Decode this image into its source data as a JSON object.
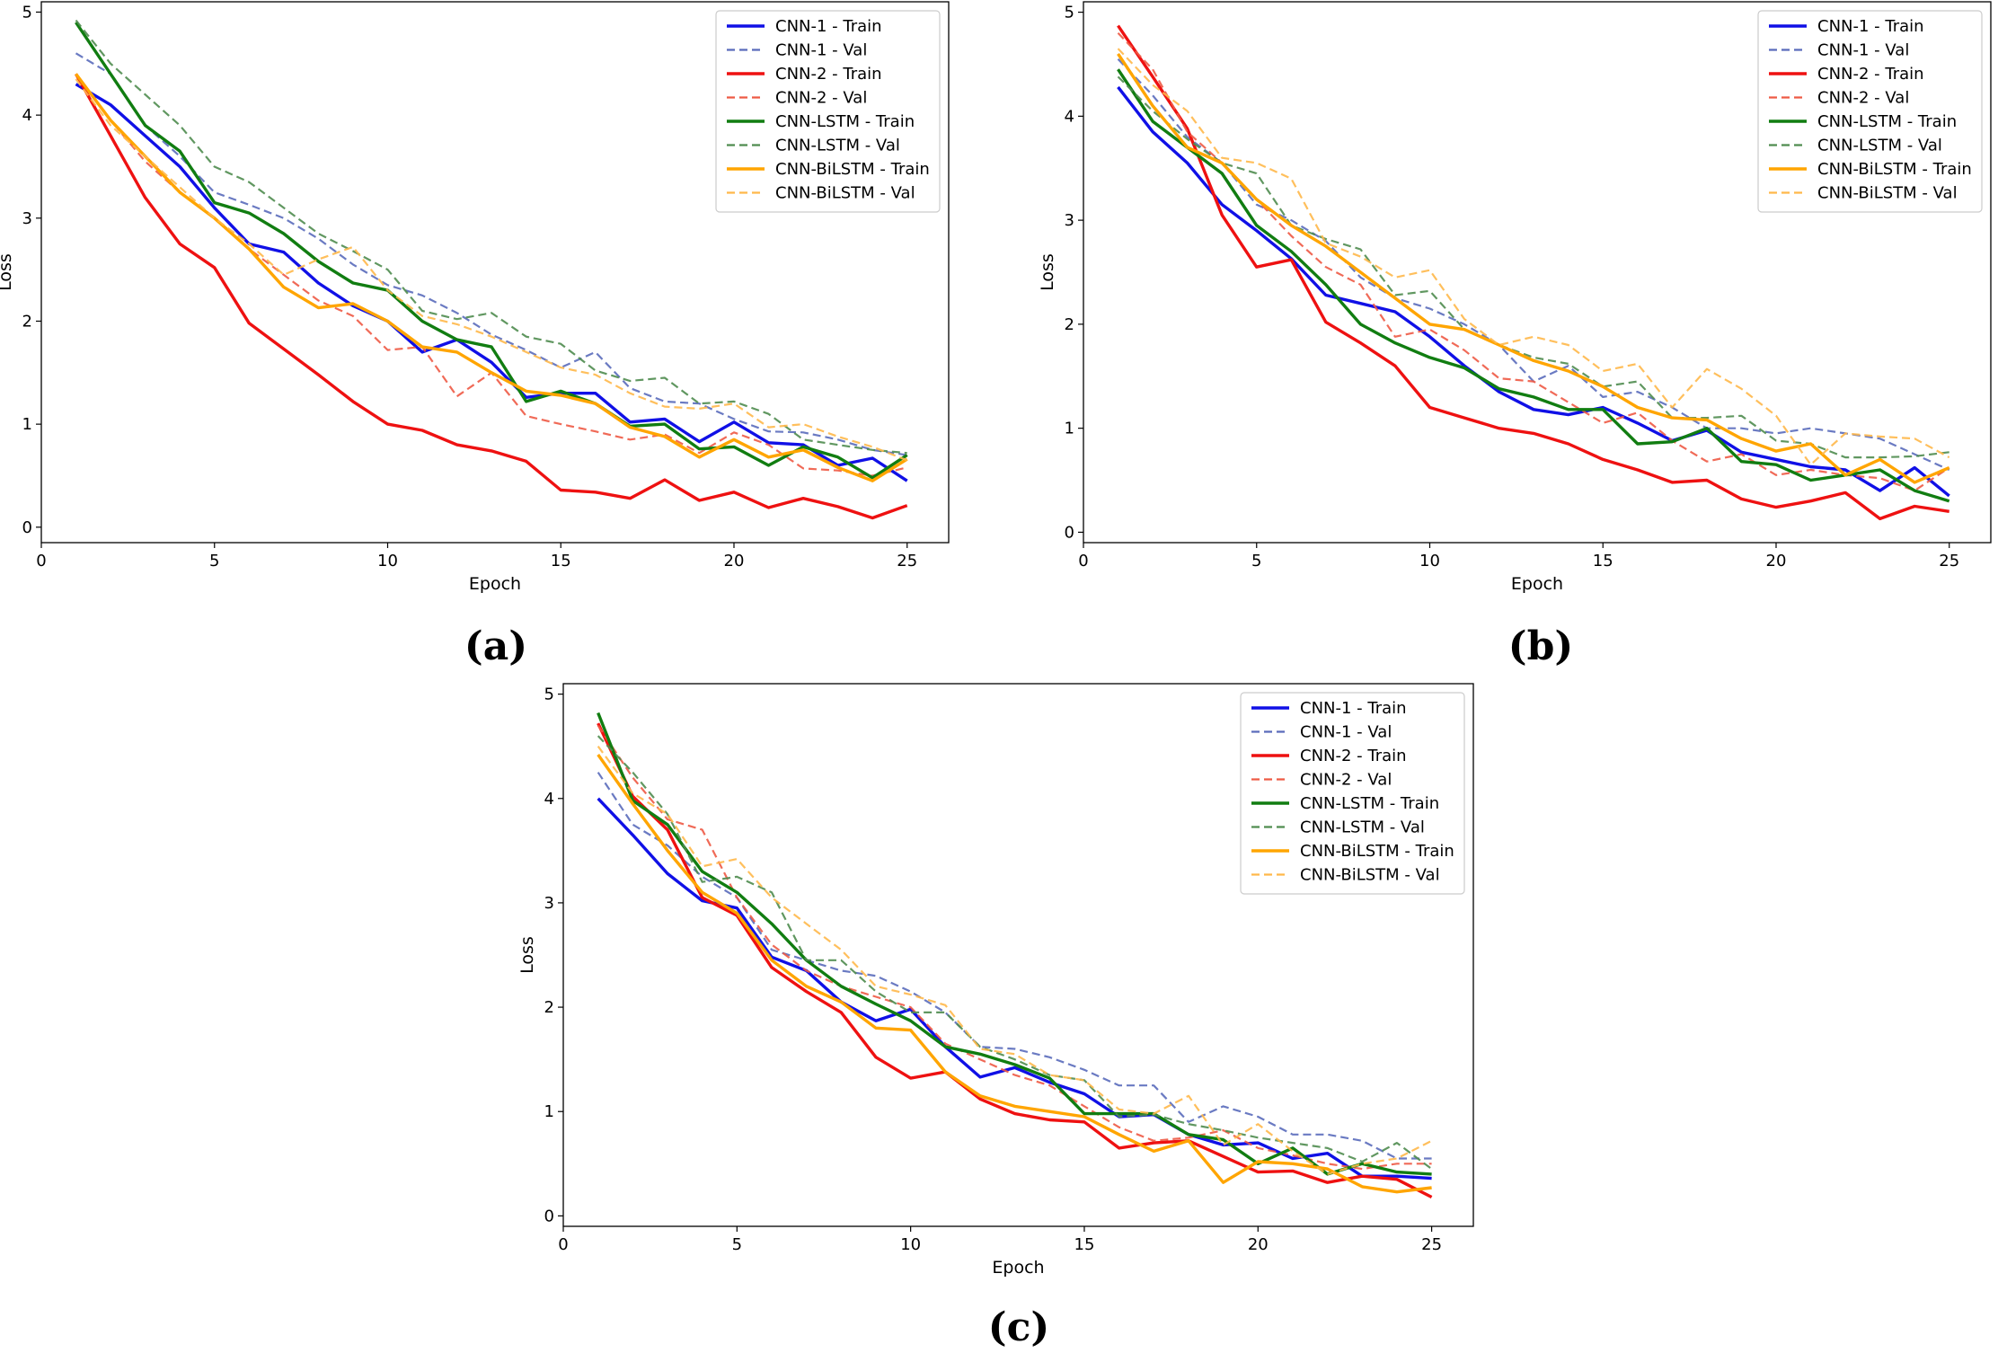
{
  "panel_labels": [
    "(a)",
    "(b)",
    "(c)"
  ],
  "colors": {
    "CNN-1 - Train": "#1010e6",
    "CNN-1 - Val": "#5a6bbb",
    "CNN-2 - Train": "#ee1111",
    "CNN-2 - Val": "#ee5a45",
    "CNN-LSTM - Train": "#117d11",
    "CNN-LSTM - Val": "#4f8c4f",
    "CNN-BiLSTM - Train": "#ffa500",
    "CNN-BiLSTM - Val": "#ffb84a"
  },
  "chart_data": [
    {
      "type": "line",
      "title": "",
      "panel": "(a)",
      "xlabel": "Epoch",
      "ylabel": "Loss",
      "xlim": [
        0,
        26.2
      ],
      "ylim": [
        -0.15,
        5.1
      ],
      "xticks": [
        0,
        5,
        10,
        15,
        20,
        25
      ],
      "yticks": [
        0,
        1,
        2,
        3,
        4,
        5
      ],
      "legend": "top-right",
      "x": [
        1,
        2,
        3,
        4,
        5,
        6,
        7,
        8,
        9,
        10,
        11,
        12,
        13,
        14,
        15,
        16,
        17,
        18,
        19,
        20,
        21,
        22,
        23,
        24,
        25
      ],
      "series": [
        {
          "name": "CNN-1 - Train",
          "dashed": false,
          "values": [
            4.3,
            4.1,
            3.8,
            3.5,
            3.1,
            2.75,
            2.67,
            2.37,
            2.15,
            2.0,
            1.7,
            1.82,
            1.6,
            1.26,
            1.3,
            1.3,
            1.02,
            1.05,
            0.83,
            1.02,
            0.82,
            0.8,
            0.6,
            0.67,
            0.45
          ]
        },
        {
          "name": "CNN-1 - Val",
          "dashed": true,
          "values": [
            4.6,
            4.4,
            3.9,
            3.6,
            3.25,
            3.13,
            3.0,
            2.8,
            2.55,
            2.35,
            2.25,
            2.08,
            1.87,
            1.72,
            1.55,
            1.7,
            1.35,
            1.22,
            1.2,
            1.05,
            0.93,
            0.92,
            0.85,
            0.75,
            0.7
          ]
        },
        {
          "name": "CNN-2 - Train",
          "dashed": false,
          "values": [
            4.4,
            3.8,
            3.2,
            2.75,
            2.52,
            1.98,
            1.73,
            1.48,
            1.22,
            1.0,
            0.94,
            0.8,
            0.74,
            0.64,
            0.36,
            0.34,
            0.28,
            0.46,
            0.26,
            0.34,
            0.19,
            0.28,
            0.2,
            0.09,
            0.21
          ]
        },
        {
          "name": "CNN-2 - Val",
          "dashed": true,
          "values": [
            4.4,
            3.95,
            3.55,
            3.25,
            3.0,
            2.7,
            2.45,
            2.2,
            2.05,
            1.72,
            1.75,
            1.27,
            1.5,
            1.08,
            1.0,
            0.93,
            0.85,
            0.9,
            0.72,
            0.92,
            0.8,
            0.57,
            0.55,
            0.5,
            0.58
          ]
        },
        {
          "name": "CNN-LSTM - Train",
          "dashed": false,
          "values": [
            4.9,
            4.4,
            3.9,
            3.65,
            3.15,
            3.05,
            2.85,
            2.58,
            2.37,
            2.3,
            2.0,
            1.82,
            1.75,
            1.22,
            1.32,
            1.2,
            0.98,
            1.0,
            0.76,
            0.78,
            0.6,
            0.78,
            0.68,
            0.48,
            0.7
          ]
        },
        {
          "name": "CNN-LSTM - Val",
          "dashed": true,
          "values": [
            4.92,
            4.5,
            4.2,
            3.9,
            3.5,
            3.35,
            3.1,
            2.85,
            2.68,
            2.5,
            2.1,
            2.02,
            2.08,
            1.85,
            1.78,
            1.52,
            1.42,
            1.45,
            1.2,
            1.22,
            1.1,
            0.85,
            0.8,
            0.75,
            0.72
          ]
        },
        {
          "name": "CNN-BiLSTM - Train",
          "dashed": false,
          "values": [
            4.4,
            3.95,
            3.6,
            3.25,
            3.0,
            2.7,
            2.33,
            2.13,
            2.17,
            2.0,
            1.75,
            1.7,
            1.5,
            1.32,
            1.28,
            1.2,
            0.97,
            0.88,
            0.68,
            0.85,
            0.68,
            0.75,
            0.58,
            0.45,
            0.66
          ]
        },
        {
          "name": "CNN-BiLSTM - Val",
          "dashed": true,
          "values": [
            4.35,
            3.9,
            3.6,
            3.3,
            3.0,
            2.75,
            2.45,
            2.6,
            2.72,
            2.3,
            2.05,
            1.97,
            1.85,
            1.7,
            1.55,
            1.48,
            1.3,
            1.17,
            1.15,
            1.2,
            0.97,
            1.0,
            0.88,
            0.78,
            0.65
          ]
        }
      ]
    },
    {
      "type": "line",
      "title": "",
      "panel": "(b)",
      "xlabel": "Epoch",
      "ylabel": "Loss",
      "xlim": [
        0,
        26.2
      ],
      "ylim": [
        -0.1,
        5.1
      ],
      "xticks": [
        0,
        5,
        10,
        15,
        20,
        25
      ],
      "yticks": [
        0,
        1,
        2,
        3,
        4,
        5
      ],
      "legend": "top-right",
      "x": [
        1,
        2,
        3,
        4,
        5,
        6,
        7,
        8,
        9,
        10,
        11,
        12,
        13,
        14,
        15,
        16,
        17,
        18,
        19,
        20,
        21,
        22,
        23,
        24,
        25
      ],
      "series": [
        {
          "name": "CNN-1 - Train",
          "dashed": false,
          "values": [
            4.28,
            3.85,
            3.55,
            3.15,
            2.9,
            2.63,
            2.28,
            2.2,
            2.12,
            1.88,
            1.6,
            1.35,
            1.18,
            1.13,
            1.2,
            1.05,
            0.88,
            0.98,
            0.77,
            0.7,
            0.63,
            0.6,
            0.4,
            0.62,
            0.35
          ]
        },
        {
          "name": "CNN-1 - Val",
          "dashed": true,
          "values": [
            4.55,
            4.2,
            3.8,
            3.55,
            3.15,
            3.0,
            2.8,
            2.45,
            2.25,
            2.15,
            2.0,
            1.8,
            1.45,
            1.6,
            1.3,
            1.35,
            1.2,
            1.0,
            1.0,
            0.95,
            1.0,
            0.95,
            0.9,
            0.75,
            0.6
          ]
        },
        {
          "name": "CNN-2 - Train",
          "dashed": false,
          "values": [
            4.87,
            4.38,
            3.88,
            3.05,
            2.55,
            2.62,
            2.02,
            1.82,
            1.6,
            1.2,
            1.1,
            1.0,
            0.95,
            0.85,
            0.7,
            0.6,
            0.48,
            0.5,
            0.32,
            0.24,
            0.3,
            0.38,
            0.13,
            0.25,
            0.2
          ]
        },
        {
          "name": "CNN-2 - Val",
          "dashed": true,
          "values": [
            4.8,
            4.45,
            3.85,
            3.55,
            3.2,
            2.85,
            2.55,
            2.38,
            1.88,
            1.95,
            1.75,
            1.48,
            1.45,
            1.25,
            1.05,
            1.15,
            0.88,
            0.68,
            0.75,
            0.55,
            0.6,
            0.55,
            0.52,
            0.4,
            0.62
          ]
        },
        {
          "name": "CNN-LSTM - Train",
          "dashed": false,
          "values": [
            4.45,
            3.95,
            3.7,
            3.45,
            2.95,
            2.7,
            2.38,
            2.0,
            1.82,
            1.68,
            1.58,
            1.38,
            1.3,
            1.18,
            1.18,
            0.85,
            0.87,
            1.0,
            0.68,
            0.65,
            0.5,
            0.55,
            0.6,
            0.4,
            0.3
          ]
        },
        {
          "name": "CNN-LSTM - Val",
          "dashed": true,
          "values": [
            4.38,
            4.05,
            3.78,
            3.55,
            3.45,
            2.95,
            2.82,
            2.72,
            2.28,
            2.32,
            1.95,
            1.8,
            1.68,
            1.62,
            1.4,
            1.45,
            1.1,
            1.1,
            1.12,
            0.88,
            0.85,
            0.72,
            0.72,
            0.73,
            0.77
          ]
        },
        {
          "name": "CNN-BiLSTM - Train",
          "dashed": false,
          "values": [
            4.6,
            4.1,
            3.7,
            3.55,
            3.2,
            2.95,
            2.75,
            2.5,
            2.25,
            2.0,
            1.95,
            1.8,
            1.65,
            1.55,
            1.4,
            1.2,
            1.1,
            1.08,
            0.9,
            0.78,
            0.85,
            0.55,
            0.7,
            0.48,
            0.62
          ]
        },
        {
          "name": "CNN-BiLSTM - Val",
          "dashed": true,
          "values": [
            4.65,
            4.3,
            4.05,
            3.6,
            3.55,
            3.4,
            2.78,
            2.65,
            2.45,
            2.52,
            2.05,
            1.8,
            1.88,
            1.8,
            1.55,
            1.62,
            1.2,
            1.57,
            1.38,
            1.12,
            0.65,
            0.95,
            0.92,
            0.9,
            0.72
          ]
        }
      ]
    },
    {
      "type": "line",
      "title": "",
      "panel": "(c)",
      "xlabel": "Epoch",
      "ylabel": "Loss",
      "xlim": [
        0,
        26.2
      ],
      "ylim": [
        -0.1,
        5.1
      ],
      "xticks": [
        0,
        5,
        10,
        15,
        20,
        25
      ],
      "yticks": [
        0,
        1,
        2,
        3,
        4,
        5
      ],
      "legend": "top-right",
      "x": [
        1,
        2,
        3,
        4,
        5,
        6,
        7,
        8,
        9,
        10,
        11,
        12,
        13,
        14,
        15,
        16,
        17,
        18,
        19,
        20,
        21,
        22,
        23,
        24,
        25
      ],
      "series": [
        {
          "name": "CNN-1 - Train",
          "dashed": false,
          "values": [
            4.0,
            3.65,
            3.28,
            3.02,
            2.95,
            2.48,
            2.35,
            2.05,
            1.87,
            1.98,
            1.62,
            1.33,
            1.42,
            1.28,
            1.17,
            0.95,
            0.97,
            0.78,
            0.68,
            0.7,
            0.55,
            0.6,
            0.38,
            0.38,
            0.36
          ]
        },
        {
          "name": "CNN-1 - Val",
          "dashed": true,
          "values": [
            4.25,
            3.75,
            3.55,
            3.25,
            3.05,
            2.55,
            2.45,
            2.35,
            2.3,
            2.15,
            1.95,
            1.62,
            1.6,
            1.52,
            1.4,
            1.25,
            1.25,
            0.9,
            1.05,
            0.95,
            0.78,
            0.78,
            0.72,
            0.55,
            0.55
          ]
        },
        {
          "name": "CNN-2 - Train",
          "dashed": false,
          "values": [
            4.72,
            4.02,
            3.7,
            3.05,
            2.88,
            2.38,
            2.15,
            1.95,
            1.52,
            1.32,
            1.38,
            1.12,
            0.98,
            0.92,
            0.9,
            0.65,
            0.7,
            0.72,
            0.57,
            0.42,
            0.43,
            0.32,
            0.38,
            0.35,
            0.18
          ]
        },
        {
          "name": "CNN-2 - Val",
          "dashed": true,
          "values": [
            4.7,
            4.2,
            3.8,
            3.7,
            3.05,
            2.6,
            2.35,
            2.2,
            2.1,
            2.0,
            1.65,
            1.5,
            1.35,
            1.25,
            1.05,
            0.85,
            0.72,
            0.75,
            0.82,
            0.65,
            0.58,
            0.5,
            0.45,
            0.5,
            0.5
          ]
        },
        {
          "name": "CNN-LSTM - Train",
          "dashed": false,
          "values": [
            4.82,
            3.98,
            3.75,
            3.3,
            3.1,
            2.8,
            2.45,
            2.2,
            2.03,
            1.87,
            1.62,
            1.55,
            1.45,
            1.32,
            0.98,
            0.98,
            0.98,
            0.78,
            0.73,
            0.5,
            0.65,
            0.4,
            0.5,
            0.42,
            0.4
          ]
        },
        {
          "name": "CNN-LSTM - Val",
          "dashed": true,
          "values": [
            4.6,
            4.25,
            3.85,
            3.2,
            3.25,
            3.1,
            2.45,
            2.45,
            2.15,
            1.95,
            1.95,
            1.62,
            1.5,
            1.35,
            1.3,
            0.95,
            0.97,
            0.88,
            0.82,
            0.75,
            0.7,
            0.65,
            0.52,
            0.7,
            0.45
          ]
        },
        {
          "name": "CNN-BiLSTM - Train",
          "dashed": false,
          "values": [
            4.42,
            3.95,
            3.5,
            3.1,
            2.9,
            2.45,
            2.2,
            2.05,
            1.8,
            1.78,
            1.38,
            1.15,
            1.05,
            1.0,
            0.95,
            0.78,
            0.62,
            0.72,
            0.32,
            0.52,
            0.5,
            0.45,
            0.28,
            0.23,
            0.27
          ]
        },
        {
          "name": "CNN-BiLSTM - Val",
          "dashed": true,
          "values": [
            4.5,
            4.05,
            3.85,
            3.35,
            3.42,
            3.05,
            2.8,
            2.55,
            2.2,
            2.12,
            2.02,
            1.6,
            1.55,
            1.35,
            1.3,
            1.02,
            0.98,
            1.15,
            0.68,
            0.88,
            0.62,
            0.4,
            0.5,
            0.55,
            0.72
          ]
        }
      ]
    }
  ]
}
